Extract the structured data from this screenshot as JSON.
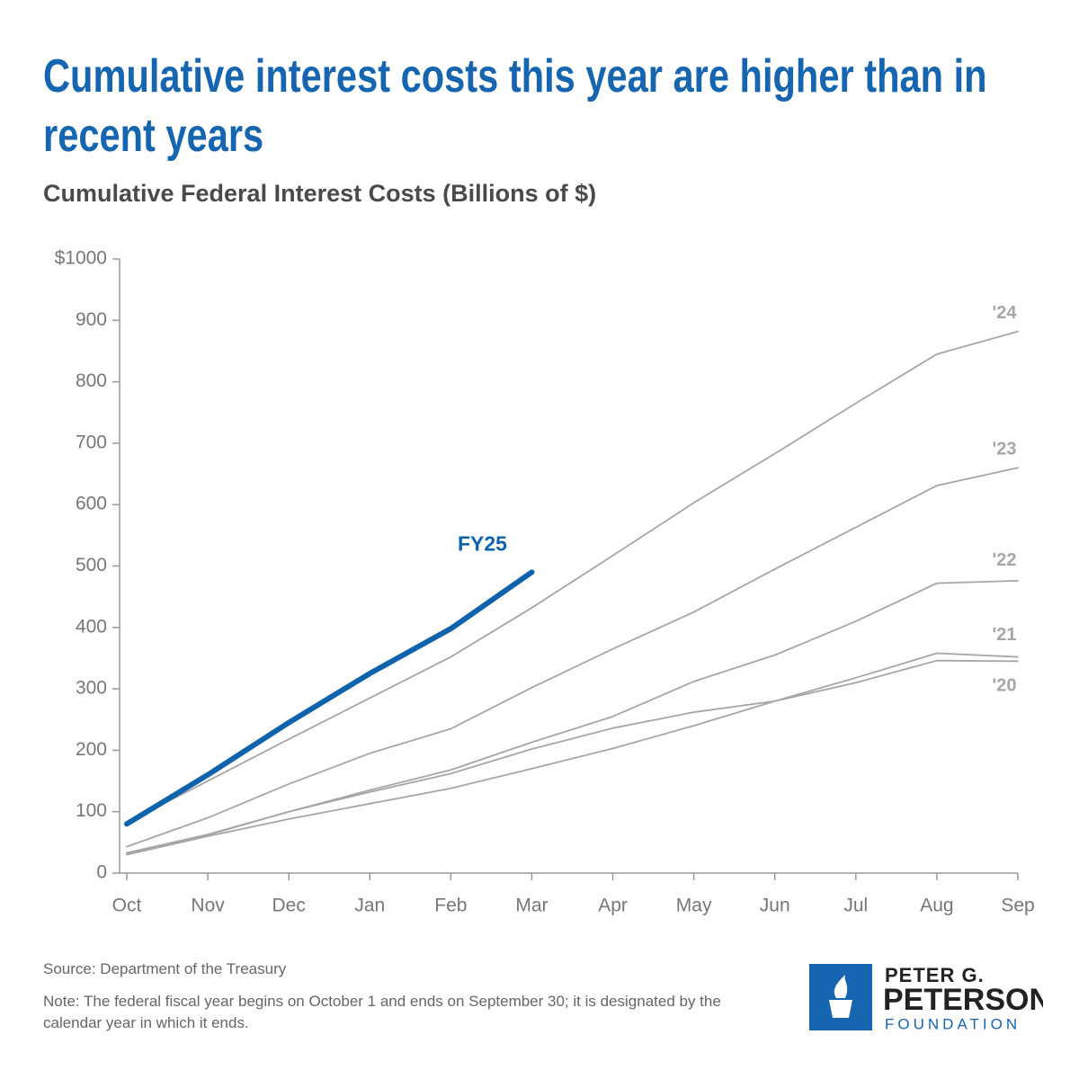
{
  "chart_data": {
    "type": "line",
    "title": "Cumulative interest costs this year are higher than in recent years",
    "subtitle": "Cumulative Federal Interest Costs (Billions of $)",
    "categories": [
      "Oct",
      "Nov",
      "Dec",
      "Jan",
      "Feb",
      "Mar",
      "Apr",
      "May",
      "Jun",
      "Jul",
      "Aug",
      "Sep"
    ],
    "series": [
      {
        "name": "'24",
        "color": "#a6a6a6",
        "values": [
          82,
          150,
          218,
          285,
          352,
          432,
          517,
          603,
          683,
          765,
          845,
          882
        ]
      },
      {
        "name": "'23",
        "color": "#a6a6a6",
        "values": [
          43,
          90,
          145,
          195,
          235,
          302,
          365,
          425,
          495,
          563,
          631,
          660
        ]
      },
      {
        "name": "'22",
        "color": "#a6a6a6",
        "values": [
          33,
          63,
          100,
          135,
          168,
          213,
          255,
          312,
          355,
          410,
          472,
          476
        ]
      },
      {
        "name": "'21",
        "color": "#a6a6a6",
        "values": [
          32,
          62,
          100,
          132,
          162,
          202,
          236,
          262,
          280,
          318,
          358,
          352
        ]
      },
      {
        "name": "'20",
        "color": "#a6a6a6",
        "values": [
          30,
          60,
          88,
          113,
          138,
          170,
          203,
          240,
          280,
          310,
          346,
          345
        ]
      },
      {
        "name": "FY25",
        "color": "#0f62ac",
        "values": [
          80,
          160,
          245,
          325,
          398,
          490,
          null,
          null,
          null,
          null,
          null,
          null
        ]
      }
    ],
    "ylim": [
      0,
      1000
    ],
    "yticks": [
      0,
      100,
      200,
      300,
      400,
      500,
      600,
      700,
      800,
      900,
      {
        "value": 1000,
        "label": "$1000"
      }
    ],
    "grid": false,
    "source": "Source: Department of the Treasury",
    "note": "Note: The federal fiscal year begins on October 1 and ends on September 30; it is designated by the calendar year in which it ends."
  },
  "logo": {
    "line1": "PETER G.",
    "line2": "PETERSON",
    "line3": "FOUNDATION"
  }
}
